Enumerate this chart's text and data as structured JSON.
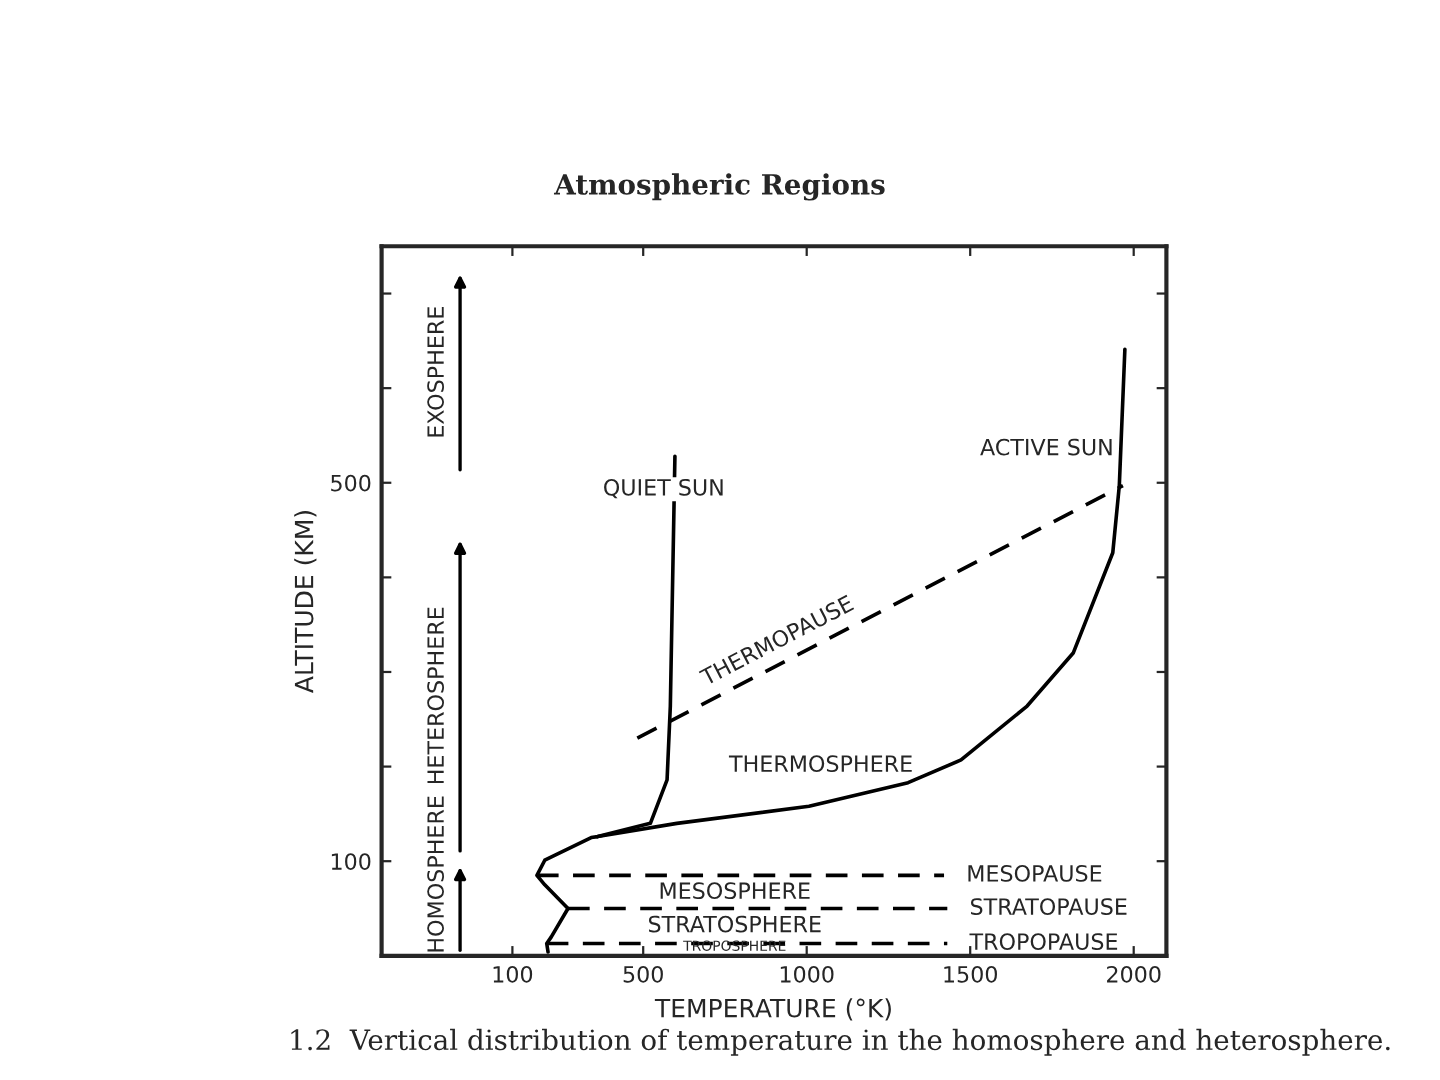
{
  "chart_data": {
    "type": "line",
    "title": "Atmospheric Regions",
    "xlabel": "TEMPERATURE (°K)",
    "ylabel": "ALTITUDE (KM)",
    "xlim": [
      -300,
      2100
    ],
    "ylim": [
      0,
      750
    ],
    "xticks": [
      100,
      500,
      1000,
      1500,
      2000
    ],
    "yticks": [
      {
        "value": 100,
        "label": "100"
      },
      {
        "value": 200,
        "label": null
      },
      {
        "value": 300,
        "label": null
      },
      {
        "value": 400,
        "label": null
      },
      {
        "value": 500,
        "label": "500"
      },
      {
        "value": 600,
        "label": null
      },
      {
        "value": 700,
        "label": null
      }
    ],
    "grid": false,
    "legend": false,
    "series": [
      {
        "name": "QUIET SUN",
        "color": "#000000",
        "line_style": "solid",
        "x": [
          209,
          205,
          219,
          270,
          199,
          175,
          199,
          341,
          361,
          522,
          573,
          583,
          597
        ],
        "values": [
          4,
          13,
          20,
          50,
          75,
          85,
          101,
          125,
          126,
          140,
          186,
          264,
          528
        ]
      },
      {
        "name": "ACTIVE SUN",
        "color": "#000000",
        "line_style": "solid",
        "x": [
          361,
          603,
          1007,
          1310,
          1472,
          1674,
          1815,
          1936,
          1956,
          1973
        ],
        "values": [
          126,
          140,
          158,
          183,
          207,
          264,
          320,
          426,
          497,
          641
        ]
      },
      {
        "name": "THERMOPAUSE",
        "color": "#000000",
        "line_style": "dashed",
        "x": [
          482,
          1967
        ],
        "values": [
          230,
          497
        ]
      },
      {
        "name": "MESOPAUSE",
        "color": "#000000",
        "line_style": "dashed",
        "x": [
          175,
          1420
        ],
        "values": [
          85,
          85
        ]
      },
      {
        "name": "STRATOPAUSE",
        "color": "#000000",
        "line_style": "dashed",
        "x": [
          270,
          1430
        ],
        "values": [
          50,
          50
        ]
      },
      {
        "name": "TROPOPAUSE",
        "color": "#000000",
        "line_style": "dashed",
        "x": [
          205,
          1430
        ],
        "values": [
          13,
          13
        ]
      }
    ],
    "annotations": [
      "HOMOSPHERE",
      "HETEROSPHERE",
      "EXOSPHERE",
      "THERMOSPHERE",
      "MESOSPHERE",
      "STRATOSPHERE",
      "TROPOSPHERE",
      "1.2  Vertical distribution of temperature in the homosphere and heterosphere."
    ]
  }
}
